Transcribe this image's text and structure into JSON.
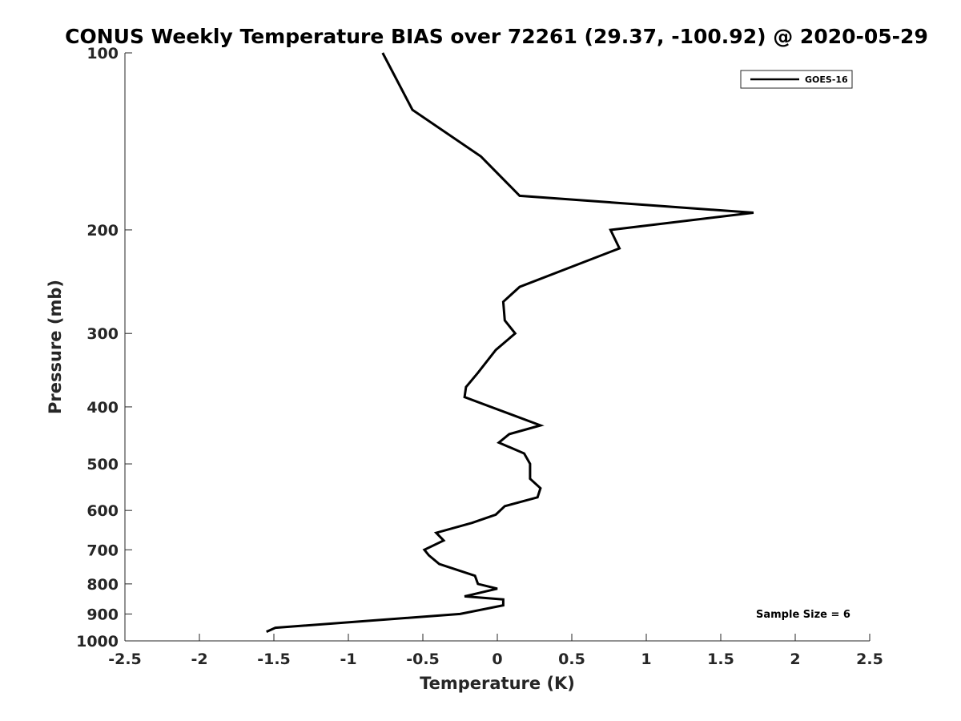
{
  "chart_data": {
    "type": "line",
    "title": "CONUS Weekly Temperature BIAS over 72261 (29.37, -100.92) @ 2020-05-29",
    "xlabel": "Temperature (K)",
    "ylabel": "Pressure (mb)",
    "xlim": [
      -2.5,
      2.5
    ],
    "ylim": [
      100,
      1000
    ],
    "y_scale": "log",
    "y_reversed": true,
    "grid": false,
    "legend_position": "top-right",
    "x_ticks": [
      -2.5,
      -2,
      -1.5,
      -1,
      -0.5,
      0,
      0.5,
      1,
      1.5,
      2,
      2.5
    ],
    "x_tick_labels": [
      "-2.5",
      "-2",
      "-1.5",
      "-1",
      "-0.5",
      "0",
      "0.5",
      "1",
      "1.5",
      "2",
      "2.5"
    ],
    "y_ticks": [
      100,
      200,
      300,
      400,
      500,
      600,
      700,
      800,
      900,
      1000
    ],
    "y_tick_labels": [
      "100",
      "200",
      "300",
      "400",
      "500",
      "600",
      "700",
      "800",
      "900",
      "1000"
    ],
    "series": [
      {
        "name": "GOES-16",
        "color": "#000000",
        "points": [
          {
            "x": -0.77,
            "p": 100
          },
          {
            "x": -0.57,
            "p": 125
          },
          {
            "x": -0.11,
            "p": 150
          },
          {
            "x": 0.15,
            "p": 175
          },
          {
            "x": 1.72,
            "p": 187
          },
          {
            "x": 0.76,
            "p": 200
          },
          {
            "x": 0.82,
            "p": 215
          },
          {
            "x": 0.15,
            "p": 250
          },
          {
            "x": 0.04,
            "p": 265
          },
          {
            "x": 0.05,
            "p": 285
          },
          {
            "x": 0.12,
            "p": 300
          },
          {
            "x": -0.01,
            "p": 320
          },
          {
            "x": -0.13,
            "p": 350
          },
          {
            "x": -0.21,
            "p": 370
          },
          {
            "x": -0.22,
            "p": 385
          },
          {
            "x": 0.29,
            "p": 430
          },
          {
            "x": 0.08,
            "p": 445
          },
          {
            "x": 0.01,
            "p": 460
          },
          {
            "x": 0.18,
            "p": 480
          },
          {
            "x": 0.22,
            "p": 500
          },
          {
            "x": 0.22,
            "p": 530
          },
          {
            "x": 0.29,
            "p": 550
          },
          {
            "x": 0.27,
            "p": 570
          },
          {
            "x": 0.05,
            "p": 590
          },
          {
            "x": -0.01,
            "p": 610
          },
          {
            "x": -0.17,
            "p": 630
          },
          {
            "x": -0.41,
            "p": 655
          },
          {
            "x": -0.36,
            "p": 675
          },
          {
            "x": -0.49,
            "p": 700
          },
          {
            "x": -0.46,
            "p": 715
          },
          {
            "x": -0.39,
            "p": 740
          },
          {
            "x": -0.15,
            "p": 775
          },
          {
            "x": -0.13,
            "p": 800
          },
          {
            "x": 0.0,
            "p": 815
          },
          {
            "x": -0.22,
            "p": 840
          },
          {
            "x": 0.04,
            "p": 850
          },
          {
            "x": 0.04,
            "p": 870
          },
          {
            "x": -0.25,
            "p": 900
          },
          {
            "x": -1.49,
            "p": 950
          },
          {
            "x": -1.55,
            "p": 965
          }
        ]
      }
    ],
    "annotations": [
      {
        "text": "Sample Size = 6",
        "position": "bottom-right"
      }
    ]
  }
}
